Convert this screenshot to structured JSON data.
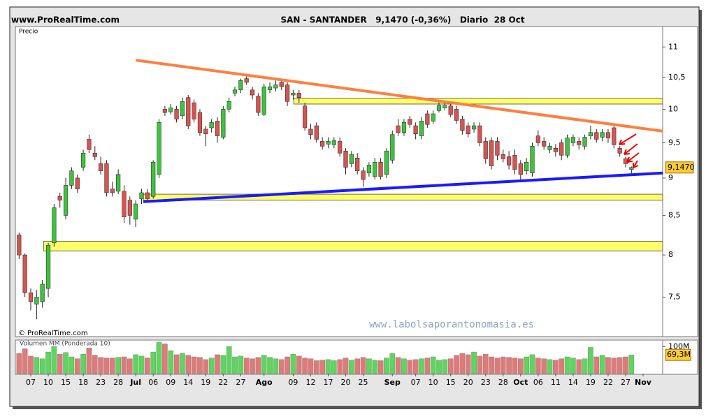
{
  "chart_data": {
    "type": "candlestick",
    "site": "www.ProRealTime.com",
    "title": "SAN - SANTANDER   9,1470 (-0,36%)   Diario  28 Oct",
    "y_label": "Precio",
    "copyright": "© ProRealTime.com",
    "watermark": "www.labolsaporantonomasia.es",
    "log_scale": true,
    "ylim": [
      7.06,
      11.35
    ],
    "yticks": [
      11,
      {
        "value": 10.5,
        "label": "10,5"
      },
      10,
      {
        "value": 9.5,
        "label": "9,5"
      },
      9,
      {
        "value": 8.5,
        "label": "8,5"
      },
      8,
      {
        "value": 7.5,
        "label": "7,5"
      }
    ],
    "up_color": "#3dc43d",
    "down_color": "#d9534f",
    "categories": [
      null,
      null,
      "07",
      null,
      null,
      "10",
      null,
      null,
      "15",
      null,
      null,
      "18",
      null,
      null,
      "23",
      null,
      null,
      "28",
      null,
      null,
      "Jul",
      null,
      null,
      "06",
      null,
      null,
      "09",
      null,
      null,
      "14",
      null,
      null,
      "19",
      null,
      null,
      "22",
      null,
      null,
      "27",
      null,
      null,
      null,
      "Ago",
      null,
      null,
      null,
      null,
      "09",
      null,
      null,
      "12",
      null,
      null,
      "17",
      null,
      null,
      "20",
      null,
      null,
      "25",
      null,
      null,
      null,
      null,
      "Sep",
      null,
      null,
      null,
      "07",
      null,
      null,
      "10",
      null,
      null,
      "15",
      null,
      null,
      "20",
      null,
      null,
      "23",
      null,
      null,
      "28",
      null,
      null,
      "Oct",
      null,
      null,
      "06",
      null,
      null,
      "11",
      null,
      null,
      "14",
      null,
      null,
      "19",
      null,
      null,
      "22",
      null,
      null,
      "27",
      null,
      null,
      "Nov"
    ],
    "open": [
      8.25,
      8.0,
      7.55,
      7.42,
      7.45,
      7.6,
      8.15,
      8.75,
      8.5,
      8.9,
      9.0,
      9.15,
      9.55,
      9.35,
      9.2,
      9.2,
      8.85,
      8.82,
      8.82,
      8.7,
      8.45,
      8.72,
      8.8,
      8.75,
      9.05,
      10.0,
      9.96,
      10.0,
      9.9,
      10.18,
      10.1,
      9.95,
      9.7,
      9.72,
      9.82,
      9.58,
      10.0,
      10.25,
      10.3,
      10.48,
      10.3,
      10.2,
      9.92,
      10.3,
      10.33,
      10.42,
      10.38,
      10.22,
      10.25,
      10.05,
      9.7,
      9.75,
      9.52,
      9.48,
      9.47,
      9.52,
      9.38,
      9.2,
      9.28,
      9.1,
      9.07,
      9.02,
      9.22,
      9.05,
      9.25,
      9.75,
      9.65,
      9.85,
      9.75,
      9.6,
      9.93,
      9.82,
      9.98,
      10.02,
      10.05,
      10.0,
      9.85,
      9.75,
      9.7,
      9.75,
      9.52,
      9.53,
      9.52,
      9.33,
      9.3,
      9.32,
      9.2,
      9.1,
      9.07,
      9.6,
      9.52,
      9.4,
      9.42,
      9.5,
      9.32,
      9.5,
      9.52,
      9.45,
      9.6,
      9.65,
      9.58,
      9.65,
      9.72,
      9.42,
      9.27,
      9.12,
      null,
      null
    ],
    "high": [
      8.28,
      8.02,
      7.6,
      7.58,
      7.7,
      8.15,
      8.65,
      8.8,
      9.0,
      9.15,
      9.05,
      9.4,
      9.62,
      9.45,
      9.3,
      9.25,
      8.95,
      9.12,
      8.9,
      8.75,
      8.7,
      8.85,
      8.85,
      9.25,
      9.85,
      10.05,
      10.08,
      10.05,
      10.18,
      10.22,
      10.15,
      10.0,
      9.75,
      9.85,
      9.88,
      10.05,
      10.18,
      10.35,
      10.48,
      10.52,
      10.35,
      10.25,
      10.4,
      10.42,
      10.45,
      10.48,
      10.42,
      10.3,
      10.3,
      10.1,
      9.78,
      9.8,
      9.58,
      9.58,
      9.58,
      9.58,
      9.42,
      9.38,
      9.35,
      9.15,
      9.22,
      9.28,
      9.28,
      9.42,
      9.68,
      9.85,
      9.85,
      9.9,
      9.8,
      9.88,
      9.98,
      9.98,
      10.12,
      10.12,
      10.1,
      10.05,
      9.9,
      9.8,
      9.8,
      9.8,
      9.58,
      9.58,
      9.58,
      9.4,
      9.38,
      9.4,
      9.25,
      9.28,
      9.5,
      9.68,
      9.58,
      9.5,
      9.48,
      9.55,
      9.62,
      9.62,
      9.58,
      9.62,
      9.75,
      9.7,
      9.7,
      9.7,
      9.75,
      9.45,
      9.3,
      9.16,
      null,
      null
    ],
    "low": [
      7.95,
      7.5,
      7.35,
      7.25,
      7.38,
      7.5,
      8.1,
      8.6,
      8.45,
      8.85,
      8.8,
      9.1,
      9.35,
      9.25,
      9.05,
      8.75,
      8.75,
      8.78,
      8.4,
      8.38,
      8.35,
      8.65,
      8.68,
      8.72,
      9.0,
      9.9,
      9.92,
      9.8,
      9.85,
      9.7,
      9.8,
      9.6,
      9.45,
      9.65,
      9.5,
      9.55,
      9.95,
      10.2,
      10.25,
      10.38,
      10.15,
      9.9,
      9.9,
      10.25,
      10.28,
      10.3,
      10.05,
      10.15,
      10.1,
      9.68,
      9.55,
      9.5,
      9.4,
      9.42,
      9.42,
      9.3,
      9.05,
      9.15,
      9.05,
      8.88,
      9.02,
      8.98,
      8.98,
      9.0,
      9.2,
      9.6,
      9.6,
      9.72,
      9.55,
      9.55,
      9.72,
      9.78,
      9.95,
      9.98,
      9.88,
      9.78,
      9.62,
      9.58,
      9.65,
      9.45,
      9.2,
      9.12,
      9.25,
      9.22,
      9.12,
      9.05,
      8.98,
      9.05,
      9.02,
      9.45,
      9.4,
      9.35,
      9.3,
      9.25,
      9.28,
      9.45,
      9.4,
      9.4,
      9.55,
      9.5,
      9.52,
      9.5,
      9.42,
      9.3,
      9.15,
      9.05,
      null,
      null
    ],
    "close": [
      8.0,
      7.55,
      7.45,
      7.5,
      7.65,
      8.12,
      8.6,
      8.7,
      8.9,
      9.1,
      8.85,
      9.35,
      9.4,
      9.3,
      9.1,
      8.8,
      8.8,
      9.05,
      8.48,
      8.5,
      8.65,
      8.8,
      8.72,
      9.22,
      9.8,
      9.95,
      10.02,
      9.85,
      10.12,
      9.75,
      9.85,
      9.65,
      9.63,
      9.8,
      9.6,
      10.0,
      10.12,
      10.3,
      10.45,
      10.42,
      10.22,
      9.95,
      10.35,
      10.35,
      10.38,
      10.35,
      10.12,
      10.25,
      10.18,
      9.72,
      9.62,
      9.55,
      9.45,
      9.52,
      9.53,
      9.35,
      9.15,
      9.33,
      9.1,
      8.98,
      9.18,
      9.22,
      9.02,
      9.38,
      9.62,
      9.65,
      9.8,
      9.77,
      9.63,
      9.82,
      9.77,
      9.93,
      10.06,
      10.06,
      9.92,
      9.83,
      9.68,
      9.63,
      9.75,
      9.5,
      9.27,
      9.17,
      9.32,
      9.27,
      9.18,
      9.12,
      9.05,
      9.22,
      9.45,
      9.5,
      9.45,
      9.45,
      9.37,
      9.32,
      9.57,
      9.58,
      9.47,
      9.58,
      9.65,
      9.55,
      9.65,
      9.57,
      9.47,
      9.35,
      9.2,
      9.147,
      null,
      null
    ],
    "last_label": "9,1470",
    "volume": {
      "title": "Volumen MM (Ponderada 10)",
      "ylim": [
        0,
        124
      ],
      "yticks": [
        {
          "value": 100,
          "label": "100M"
        }
      ],
      "values": [
        75,
        92,
        65,
        60,
        55,
        80,
        100,
        72,
        78,
        62,
        55,
        72,
        95,
        68,
        60,
        58,
        58,
        60,
        62,
        55,
        70,
        65,
        58,
        80,
        116,
        110,
        85,
        70,
        75,
        68,
        62,
        60,
        52,
        58,
        70,
        68,
        100,
        62,
        65,
        58,
        55,
        60,
        68,
        60,
        55,
        52,
        62,
        72,
        65,
        58,
        55,
        48,
        50,
        52,
        48,
        52,
        58,
        50,
        55,
        60,
        55,
        50,
        48,
        58,
        75,
        60,
        55,
        50,
        52,
        55,
        58,
        62,
        50,
        52,
        55,
        68,
        75,
        70,
        80,
        65,
        72,
        62,
        58,
        62,
        60,
        58,
        55,
        62,
        70,
        58,
        55,
        52,
        50,
        55,
        62,
        58,
        52,
        55,
        97,
        62,
        68,
        60,
        58,
        60,
        62,
        69.3,
        null,
        null
      ],
      "last_label": "69,3M"
    },
    "trendlines": [
      {
        "color": "#ff7f3f",
        "start": [
          20,
          10.78
        ],
        "end": [
          110.4,
          9.67
        ]
      },
      {
        "color": "#1a1aff",
        "start": [
          21.3,
          8.68
        ],
        "end": [
          110.4,
          9.07
        ]
      }
    ],
    "bands": [
      {
        "color": "#ffff66",
        "start": 47.1,
        "low": 10.08,
        "high": 10.17
      },
      {
        "color": "#ffff66",
        "start": 21.3,
        "low": 8.7,
        "high": 8.78
      },
      {
        "color": "#ffff66",
        "start": 4.2,
        "low": 8.05,
        "high": 8.17
      }
    ]
  }
}
